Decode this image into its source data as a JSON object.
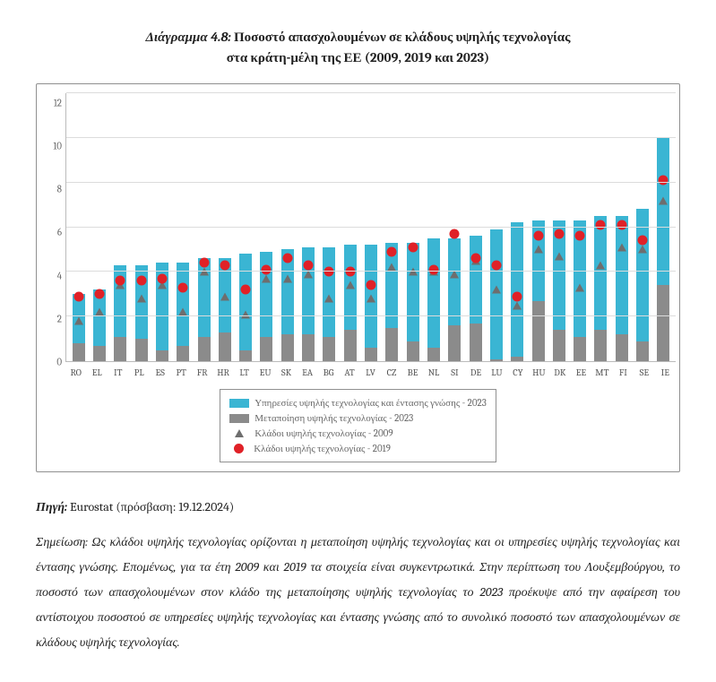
{
  "title": {
    "label": "Διάγραμμα 4.8:",
    "line1": "Ποσοστό απασχολουμένων σε κλάδους υψηλής τεχνολογίας",
    "line2": "στα κράτη-μέλη της ΕΕ (2009, 2019 και 2023)"
  },
  "chart": {
    "type": "stacked-bar-with-markers",
    "ylim": [
      0,
      12
    ],
    "ytick_step": 2,
    "yticks": [
      0,
      2,
      4,
      6,
      8,
      10,
      12
    ],
    "grid_color": "#dcdcdc",
    "axis_color": "#bbbbbb",
    "background_color": "#ffffff",
    "label_fontsize": 11,
    "label_color": "#666666",
    "series": {
      "services_2023": {
        "label": "Υπηρεσίες υψηλής τεχνολογίας και έντασης γνώσης - 2023",
        "color": "#3ab5d3"
      },
      "manuf_2023": {
        "label": "Μεταποίηση υψηλής τεχνολογίας - 2023",
        "color": "#8b8b8b"
      },
      "tri_2009": {
        "label": "Κλάδοι υψηλής τεχνολογίας - 2009",
        "color": "#6e6e6e",
        "marker": "triangle"
      },
      "dot_2019": {
        "label": "Κλάδοι υψηλής τεχνολογίας - 2019",
        "color": "#e02127",
        "marker": "circle"
      }
    },
    "categories": [
      "RO",
      "EL",
      "IT",
      "PL",
      "ES",
      "PT",
      "FR",
      "HR",
      "LT",
      "EU",
      "SK",
      "EA",
      "BG",
      "AT",
      "LV",
      "CZ",
      "BE",
      "NL",
      "SI",
      "DE",
      "LU",
      "CY",
      "HU",
      "DK",
      "EE",
      "MT",
      "FI",
      "SE",
      "IE"
    ],
    "manuf_2023_values": [
      0.8,
      0.7,
      1.1,
      1.0,
      0.5,
      0.7,
      1.1,
      1.3,
      0.5,
      1.1,
      1.2,
      1.2,
      1.1,
      1.4,
      0.6,
      1.5,
      0.9,
      0.6,
      1.6,
      1.7,
      0.1,
      0.2,
      2.7,
      1.4,
      1.1,
      1.4,
      1.2,
      0.9,
      3.4
    ],
    "services_2023_values": [
      2.2,
      2.5,
      3.2,
      3.3,
      3.9,
      3.7,
      3.5,
      3.3,
      4.3,
      3.8,
      3.8,
      3.9,
      4.0,
      3.8,
      4.6,
      3.8,
      4.4,
      4.9,
      3.9,
      3.9,
      5.8,
      6.0,
      3.6,
      4.9,
      5.2,
      5.1,
      5.3,
      5.9,
      6.6
    ],
    "tri_2009_values": [
      1.8,
      2.2,
      3.4,
      2.8,
      3.4,
      2.2,
      4.0,
      2.9,
      2.1,
      3.7,
      3.7,
      3.9,
      2.8,
      3.4,
      2.8,
      4.2,
      4.0,
      4.0,
      3.9,
      4.5,
      3.2,
      2.5,
      5.0,
      4.7,
      3.3,
      4.3,
      5.1,
      5.0,
      7.2
    ],
    "dot_2019_values": [
      2.9,
      3.0,
      3.6,
      3.6,
      3.7,
      3.3,
      4.4,
      4.3,
      3.2,
      4.1,
      4.6,
      4.3,
      4.0,
      4.0,
      3.4,
      4.9,
      5.1,
      4.1,
      5.7,
      4.6,
      4.3,
      2.9,
      5.6,
      5.7,
      5.6,
      6.1,
      6.1,
      5.4,
      8.1
    ]
  },
  "source": {
    "label": "Πηγή:",
    "text": "Eurostat (πρόσβαση: 19.12.2024)"
  },
  "note": "Σημείωση: Ως κλάδοι υψηλής τεχνολογίας ορίζονται η μεταποίηση υψηλής τεχνολογίας και οι υπηρεσίες υψηλής τεχνολογίας και έντασης γνώσης. Επομένως, για τα έτη 2009 και 2019 τα στοιχεία είναι συγκεντρωτικά. Στην περίπτωση του Λουξεμβούργου, το ποσοστό των απασχολουμένων στον κλάδο της μεταποίησης υψηλής τεχνολογίας το 2023 προέκυψε από την αφαίρεση του αντίστοιχου ποσοστού σε υπηρεσίες υψηλής τεχνολογίας και έντασης γνώσης από το συνολικό ποσοστό των απασχολουμένων σε κλάδους υψηλής τεχνολογίας."
}
